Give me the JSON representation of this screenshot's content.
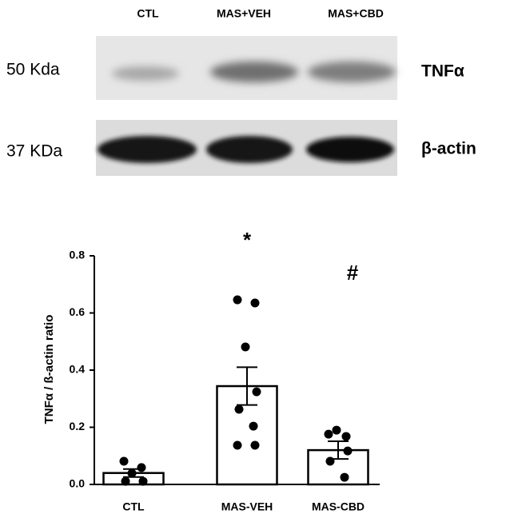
{
  "blot": {
    "lanes": [
      "CTL",
      "MAS+VEH",
      "MAS+CBD"
    ],
    "rows": [
      {
        "size": "50 Kda",
        "protein": "TNFα"
      },
      {
        "size": "37 KDa",
        "protein": "β-actin"
      }
    ]
  },
  "chart_data": {
    "type": "bar",
    "y_label": "TNFα / ß-actin ratio",
    "categories": [
      "CTL",
      "MAS-VEH",
      "MAS-CBD"
    ],
    "values": [
      0.04,
      0.344,
      0.12
    ],
    "errors": [
      0.014,
      0.066,
      0.031
    ],
    "points": [
      [
        0.081,
        0.059,
        0.039,
        0.011,
        0.011
      ],
      [
        0.646,
        0.635,
        0.481,
        0.324,
        0.263,
        0.204,
        0.137,
        0.137
      ],
      [
        0.176,
        0.168,
        0.19,
        0.117,
        0.081,
        0.025
      ]
    ],
    "annotations": [
      null,
      "*",
      "#"
    ],
    "color": "#ffffff",
    "edge_color": "#000000",
    "point_color": "#000000",
    "ylim": [
      0,
      0.8
    ],
    "yticks": [
      {
        "value": 0,
        "label": "0.0"
      },
      0.2,
      0.4,
      0.6,
      0.8
    ]
  }
}
